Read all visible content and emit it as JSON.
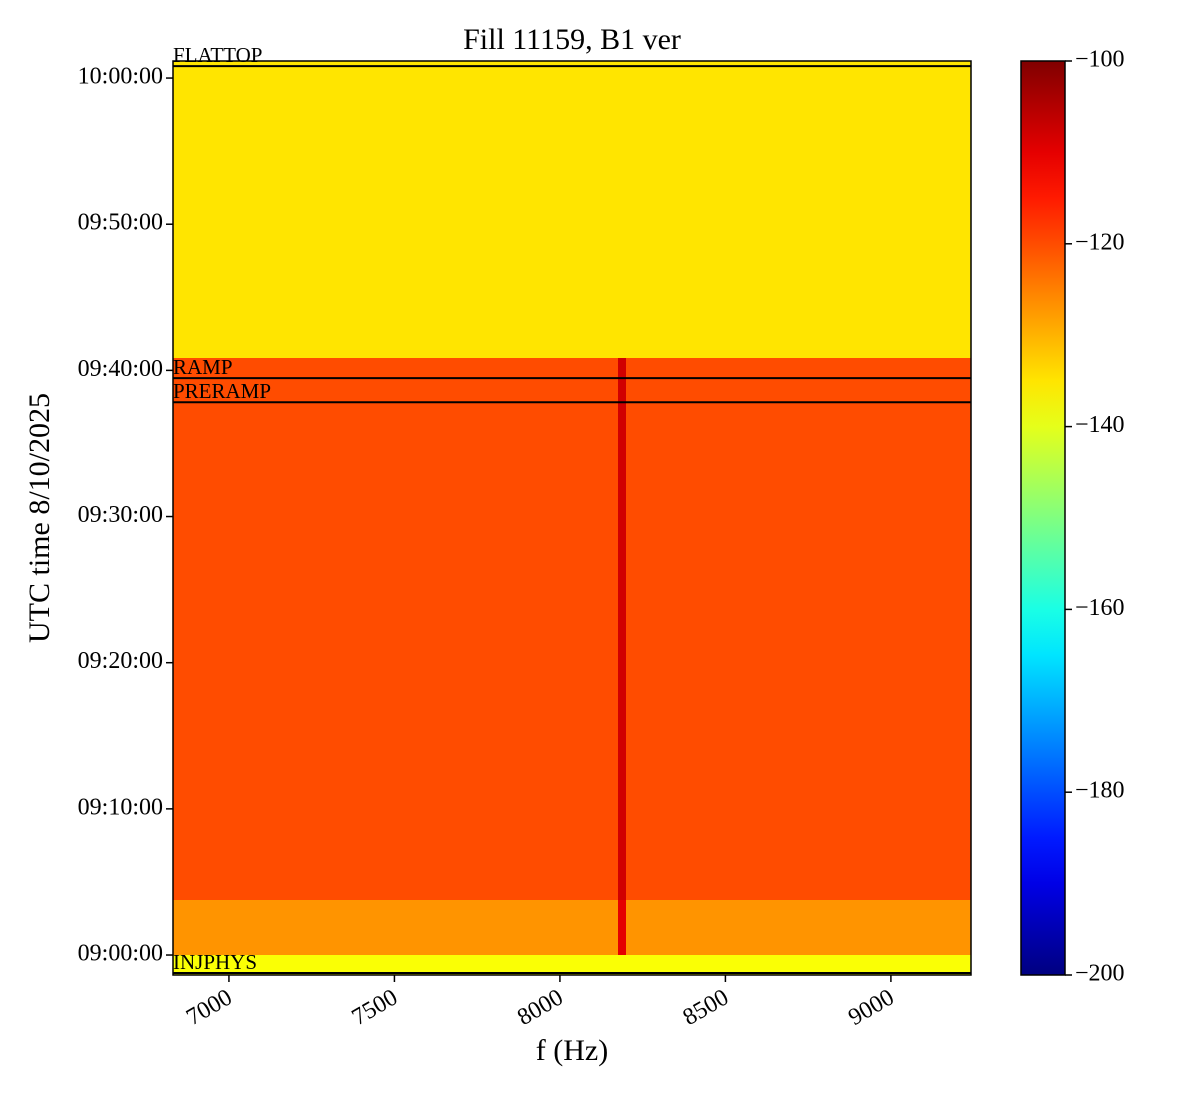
{
  "chart_data": {
    "type": "heatmap",
    "title": "Fill 11159, B1 ver",
    "xlabel": "f (Hz)",
    "ylabel": "UTC time 8/10/2025",
    "x": [
      6831,
      8175,
      8200,
      9242
    ],
    "y": [
      "08:58:38",
      "09:00:00",
      "09:03:46",
      "09:40:50",
      "10:01:10"
    ],
    "z": [
      [
        -138,
        -138,
        -138
      ],
      [
        -127,
        -110,
        -127
      ],
      [
        -120,
        -108,
        -120
      ],
      [
        -135,
        -135,
        -135
      ]
    ],
    "xlim": [
      6831,
      9242
    ],
    "xticks": [
      7000,
      7500,
      8000,
      8500,
      9000
    ],
    "ylim": [
      "08:58:38",
      "10:01:10"
    ],
    "yticks": [
      "09:00:00",
      "09:10:00",
      "09:20:00",
      "09:30:00",
      "09:40:00",
      "09:50:00",
      "10:00:00"
    ],
    "clim": [
      -200,
      -100
    ],
    "cticks": [
      {
        "value": -200,
        "label": "−200"
      },
      {
        "value": -180,
        "label": "−180"
      },
      {
        "value": -160,
        "label": "−160"
      },
      {
        "value": -140,
        "label": "−140"
      },
      {
        "value": -120,
        "label": "−120"
      },
      {
        "value": -100,
        "label": "−100"
      }
    ],
    "colormap": "jet",
    "events": [
      {
        "time": "10:00:49",
        "label": "FLATTOP"
      },
      {
        "time": "09:39:28",
        "label": "RAMP"
      },
      {
        "time": "09:37:49",
        "label": "PRERAMP"
      },
      {
        "time": "08:58:46",
        "label": "INJPHYS"
      }
    ]
  }
}
